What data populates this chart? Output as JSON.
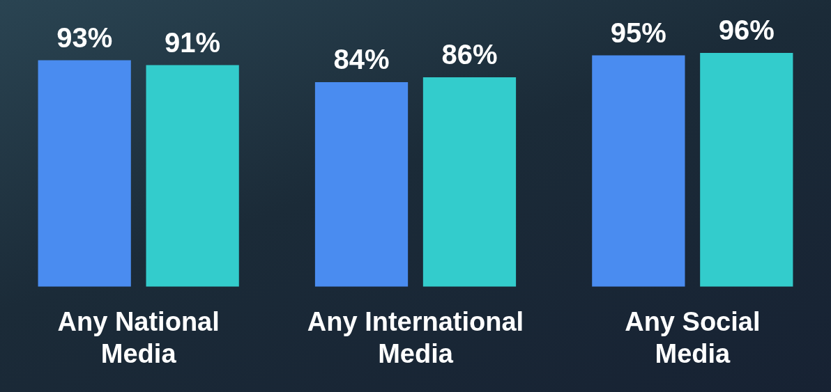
{
  "chart_data": {
    "type": "bar",
    "categories": [
      "Any National Media",
      "Any International Media",
      "Any Social Media"
    ],
    "series": [
      {
        "color": "#4a8cf0",
        "values": [
          93,
          84,
          95
        ],
        "value_labels": [
          "93%",
          "84%",
          "95%"
        ]
      },
      {
        "color": "#33cccc",
        "values": [
          91,
          86,
          96
        ],
        "value_labels": [
          "91%",
          "86%",
          "96%"
        ]
      }
    ],
    "grid": false,
    "legend": false
  }
}
